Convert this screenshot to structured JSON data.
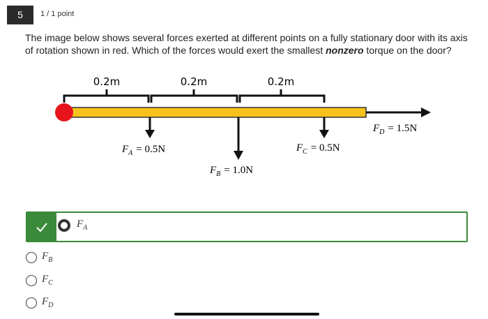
{
  "header": {
    "number": "5",
    "score": "1 / 1 point"
  },
  "question": {
    "before": "The image below shows several forces exerted at different points on a fully stationary door with its axis of rotation shown in red. Which of the forces would exert the smallest ",
    "emphasis": "nonzero",
    "after": " torque on the door?"
  },
  "diagram": {
    "segments": [
      "0.2m",
      "0.2m",
      "0.2m"
    ],
    "forces": [
      {
        "symbol": "F",
        "subscript": "A",
        "equation": "= 0.5N"
      },
      {
        "symbol": "F",
        "subscript": "B",
        "equation": "= 1.0N"
      },
      {
        "symbol": "F",
        "subscript": "C",
        "equation": "= 0.5N"
      },
      {
        "symbol": "F",
        "subscript": "D",
        "equation": "= 1.5N"
      }
    ]
  },
  "options": [
    {
      "symbol": "F",
      "subscript": "A"
    },
    {
      "symbol": "F",
      "subscript": "B"
    },
    {
      "symbol": "F",
      "subscript": "C"
    },
    {
      "symbol": "F",
      "subscript": "D"
    }
  ]
}
